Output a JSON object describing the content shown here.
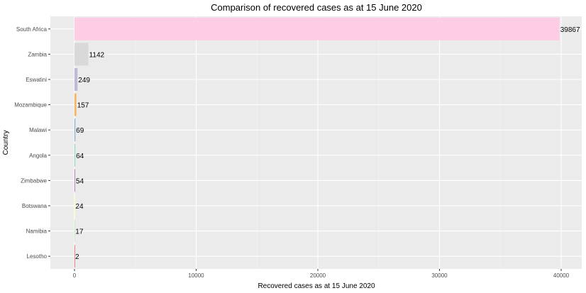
{
  "chart_data": {
    "type": "bar",
    "orientation": "horizontal",
    "title": "Comparison of recovered cases as at 15 June 2020",
    "xlabel": "Recovered cases as at 15 June 2020",
    "ylabel": "Country",
    "xlim": [
      0,
      40000
    ],
    "xticks": [
      0,
      10000,
      20000,
      30000,
      40000
    ],
    "grid": true,
    "legend": "none",
    "categories": [
      "South Africa",
      "Zambia",
      "Eswatini",
      "Mozambique",
      "Malawi",
      "Angola",
      "Zimbabwe",
      "Botswana",
      "Namibia",
      "Lesotho"
    ],
    "values": [
      39867,
      1142,
      249,
      157,
      69,
      64,
      54,
      24,
      17,
      2
    ],
    "colors": [
      "#fccde5",
      "#d9d9d9",
      "#bebada",
      "#fdb462",
      "#80b1d3",
      "#8dd3c7",
      "#bc80bd",
      "#ffffb3",
      "#ccebc5",
      "#fb8072"
    ]
  }
}
